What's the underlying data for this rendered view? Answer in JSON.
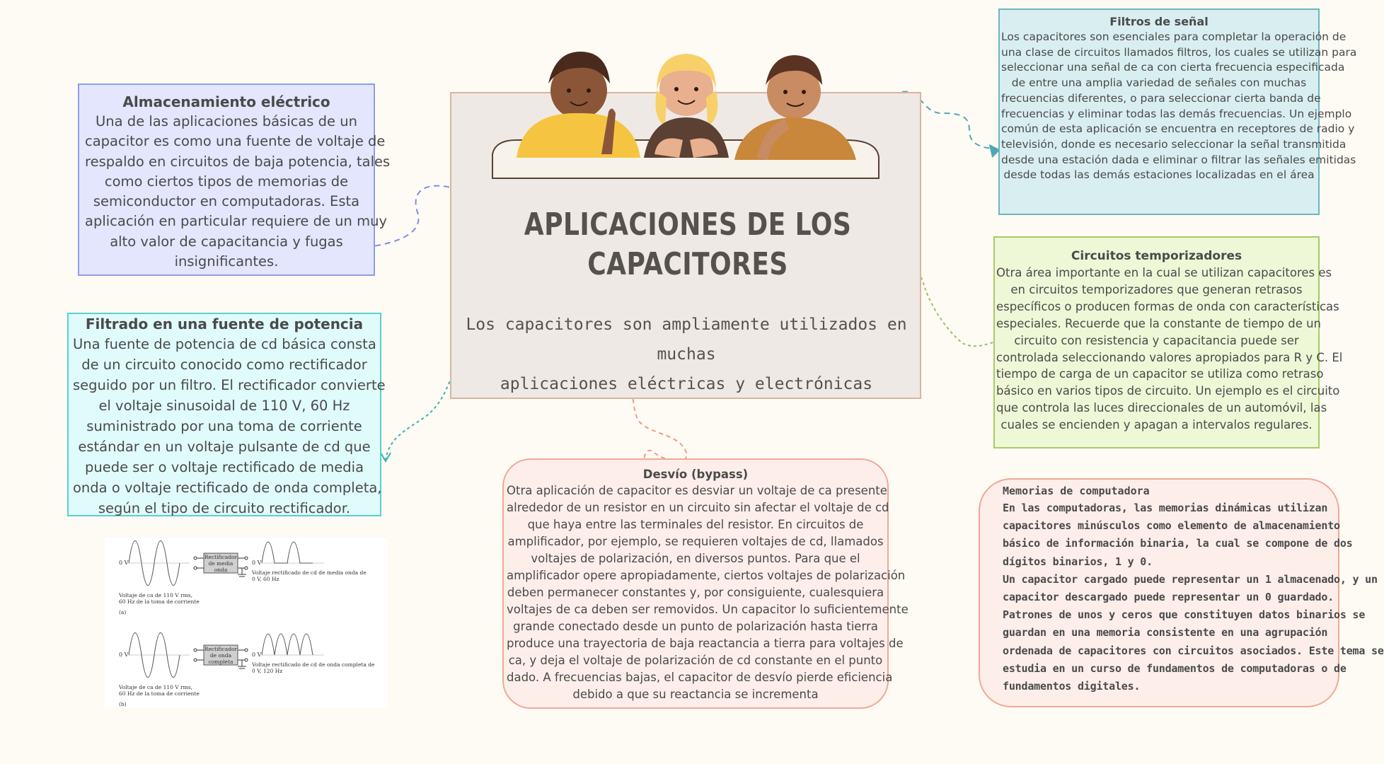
{
  "title": {
    "line1": "APLICACIONES DE LOS",
    "line2": "CAPACITORES"
  },
  "subtitle": {
    "line1": "Los capacitores son ampliamente utilizados en muchas",
    "line2": "aplicaciones eléctricas y electrónicas"
  },
  "almacenamiento": {
    "heading": "Almacenamiento eléctrico",
    "lines": [
      "Una de las aplicaciones básicas de un",
      "capacitor es como una fuente de voltaje de",
      "respaldo en circuitos de baja potencia, tales",
      "como ciertos tipos de memorias de",
      "semiconductor en computadoras. Esta",
      "aplicación en particular requiere de un muy",
      "alto valor de capacitancia y fugas",
      "insignificantes."
    ]
  },
  "filtrado": {
    "heading": "Filtrado en una fuente de potencia",
    "lines": [
      "Una fuente de potencia de cd básica consta",
      "de un circuito conocido como rectificador",
      "seguido por un filtro. El rectificador convierte",
      "el voltaje sinusoidal de 110 V, 60 Hz",
      "suministrado por una toma de corriente",
      "estándar en un voltaje pulsante de cd que",
      "puede ser o voltaje rectificado de media",
      "onda o voltaje rectificado de onda completa,",
      "según el tipo de circuito rectificador."
    ]
  },
  "filtros": {
    "heading": "Filtros de señal",
    "lines": [
      "Los capacitores son esenciales para completar la operación de",
      "una clase de circuitos llamados filtros, los cuales se utilizan para",
      "seleccionar una señal de ca con cierta frecuencia especificada",
      "de entre una amplia variedad de señales con muchas",
      "frecuencias diferentes, o para seleccionar cierta banda de",
      "frecuencias y eliminar todas las demás frecuencias. Un ejemplo",
      "común de esta aplicación se encuentra en receptores de radio y",
      "televisión, donde es necesario seleccionar la señal transmitida",
      "desde una estación dada e eliminar o filtrar las señales emitidas",
      "desde todas las demás estaciones localizadas en el área"
    ]
  },
  "temporizadores": {
    "heading": "Circuitos temporizadores",
    "lines": [
      "Otra área importante en la cual se utilizan capacitores es",
      "en circuitos temporizadores que generan retrasos",
      "específicos o producen formas de onda con características",
      "especiales. Recuerde que la constante de tiempo de un",
      "circuito con resistencia y capacitancia puede ser",
      "controlada seleccionando valores apropiados para R y C. El",
      "tiempo de carga de un capacitor se utiliza como retraso",
      "básico en varios tipos de circuito. Un ejemplo es el circuito",
      "que controla las luces direccionales de un automóvil, las",
      "cuales se encienden y apagan a intervalos regulares."
    ]
  },
  "desvio": {
    "heading": "Desvío (bypass)",
    "lines": [
      "Otra aplicación de capacitor es desviar un voltaje de ca presente",
      "alrededor de un resistor en un circuito sin afectar el voltaje de cd",
      "que haya entre las terminales del resistor. En circuitos de",
      "amplificador, por ejemplo, se requieren voltajes de cd, llamados",
      "voltajes de polarización, en diversos puntos. Para que el",
      "amplificador opere apropiadamente, ciertos voltajes de polarización",
      "deben permanecer constantes y, por consiguiente, cualesquiera",
      "voltajes de ca deben ser removidos. Un capacitor lo suficientemente",
      "grande conectado desde un punto de polarización hasta tierra",
      "produce una trayectoria de baja reactancia a tierra para voltajes de",
      "ca, y deja el voltaje de polarización de cd constante en el punto",
      "dado. A frecuencias bajas, el capacitor de desvío pierde eficiencia",
      "debido a que su reactancia se incrementa"
    ]
  },
  "memorias": {
    "heading": "Memorias de computadora",
    "lines": [
      "En las computadoras, las memorias dinámicas utilizan",
      "capacitores minúsculos como elemento de almacenamiento",
      "básico de información binaria, la cual se compone de dos",
      "dígitos binarios, 1 y 0.",
      "Un capacitor cargado puede representar un 1 almacenado, y un",
      "capacitor descargado puede representar un 0 guardado.",
      "Patrones de unos y ceros que constituyen datos binarios se",
      "guardan en una memoria consistente en una agrupación",
      "ordenada de capacitores con circuitos asociados. Este tema se",
      "estudia en un curso de fundamentos de computadoras o de",
      "fundamentos digitales."
    ]
  },
  "figure": {
    "a": {
      "zero": "0 V",
      "box_l1": "Rectificador",
      "box_l2": "de media",
      "box_l3": "onda",
      "out_l1": "Voltaje rectificado de cd de media onda de",
      "out_l2": "0 V, 60 Hz",
      "in_l1": "Voltaje de ca de 110 V rms,",
      "in_l2": "60 Hz de la toma de corriente",
      "tag": "(a)"
    },
    "b": {
      "zero": "0 V",
      "box_l1": "Rectificador",
      "box_l2": "de onda",
      "box_l3": "completa",
      "out_l1": "Voltaje rectificado de cd de onda completa de",
      "out_l2": "0 V, 120 Hz",
      "in_l1": "Voltaje de ca de 110 V rms,",
      "in_l2": "60 Hz de la toma de corriente",
      "tag": "(b)"
    }
  },
  "colors": {
    "almacenamiento": "#e3e6fd",
    "filtrado": "#e0fbfb",
    "filtros": "#d9eef0",
    "temporizadores": "#eef8d6",
    "desvio": "#fdeeea",
    "memorias": "#fdeeea",
    "center": "#efe9e5"
  }
}
